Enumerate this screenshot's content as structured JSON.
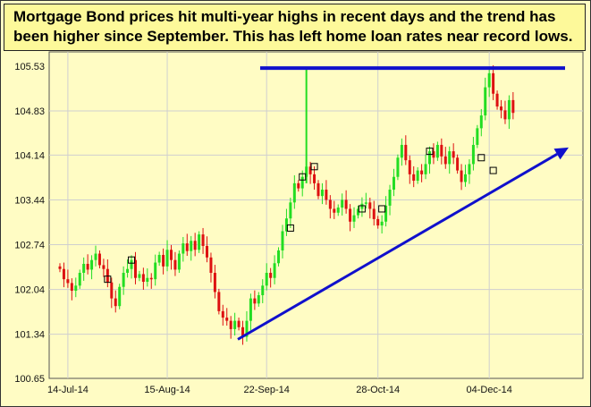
{
  "title": "Mortgage Bond prices hit multi-year highs in recent days and the trend has been higher since September.  This has left home loan rates near record lows.",
  "chart_data": {
    "type": "candlestick",
    "title": "Mortgage Bond prices hit multi-year highs in recent days and the trend has been higher since September.  This has left home loan rates near record lows.",
    "xlabel": "",
    "ylabel": "",
    "y_ticks": [
      "105.53",
      "104.83",
      "104.14",
      "103.44",
      "102.74",
      "102.04",
      "101.34",
      "100.65"
    ],
    "ylim": [
      100.65,
      105.53
    ],
    "x_ticks": [
      "14-Jul-14",
      "15-Aug-14",
      "22-Sep-14",
      "28-Oct-14",
      "04-Dec-14"
    ],
    "grid": true,
    "up_color": "#22dd22",
    "down_color": "#dd1111",
    "annotation_color": "#1010cc",
    "closes": [
      102.36,
      102.2,
      102.14,
      102.02,
      102.1,
      102.3,
      102.44,
      102.35,
      102.5,
      102.6,
      102.42,
      102.36,
      102.15,
      101.9,
      101.78,
      102.08,
      102.3,
      102.36,
      102.5,
      102.22,
      102.28,
      102.16,
      102.22,
      102.2,
      102.46,
      102.58,
      102.4,
      102.66,
      102.5,
      102.35,
      102.6,
      102.76,
      102.64,
      102.8,
      102.66,
      102.9,
      102.72,
      102.54,
      102.3,
      102.0,
      101.7,
      101.6,
      101.55,
      101.42,
      101.55,
      101.45,
      101.3,
      101.55,
      101.9,
      101.82,
      101.95,
      102.1,
      102.3,
      102.22,
      102.45,
      102.65,
      102.95,
      103.15,
      103.4,
      103.7,
      103.62,
      103.8,
      103.96,
      103.84,
      103.7,
      103.5,
      103.6,
      103.44,
      103.3,
      103.24,
      103.32,
      103.44,
      103.3,
      103.1,
      103.2,
      103.3,
      103.38,
      103.4,
      103.3,
      103.14,
      103.04,
      103.1,
      103.35,
      103.6,
      103.8,
      104.1,
      104.3,
      104.06,
      103.84,
      103.74,
      103.9,
      103.84,
      104.0,
      104.2,
      104.1,
      104.3,
      104.12,
      104.0,
      104.2,
      104.1,
      103.9,
      103.72,
      103.84,
      104.0,
      104.3,
      104.56,
      104.76,
      105.2,
      105.42,
      105.1,
      104.9,
      104.84,
      104.7,
      105.0,
      104.8
    ],
    "annotations": [
      {
        "type": "horizontal-resistance-line",
        "value": 105.5,
        "from_index": 51,
        "to_index": 128
      },
      {
        "type": "rising-trend-arrow",
        "from_index": 52,
        "from_value": 101.26,
        "to_index": 128,
        "to_value": 104.26
      }
    ]
  }
}
